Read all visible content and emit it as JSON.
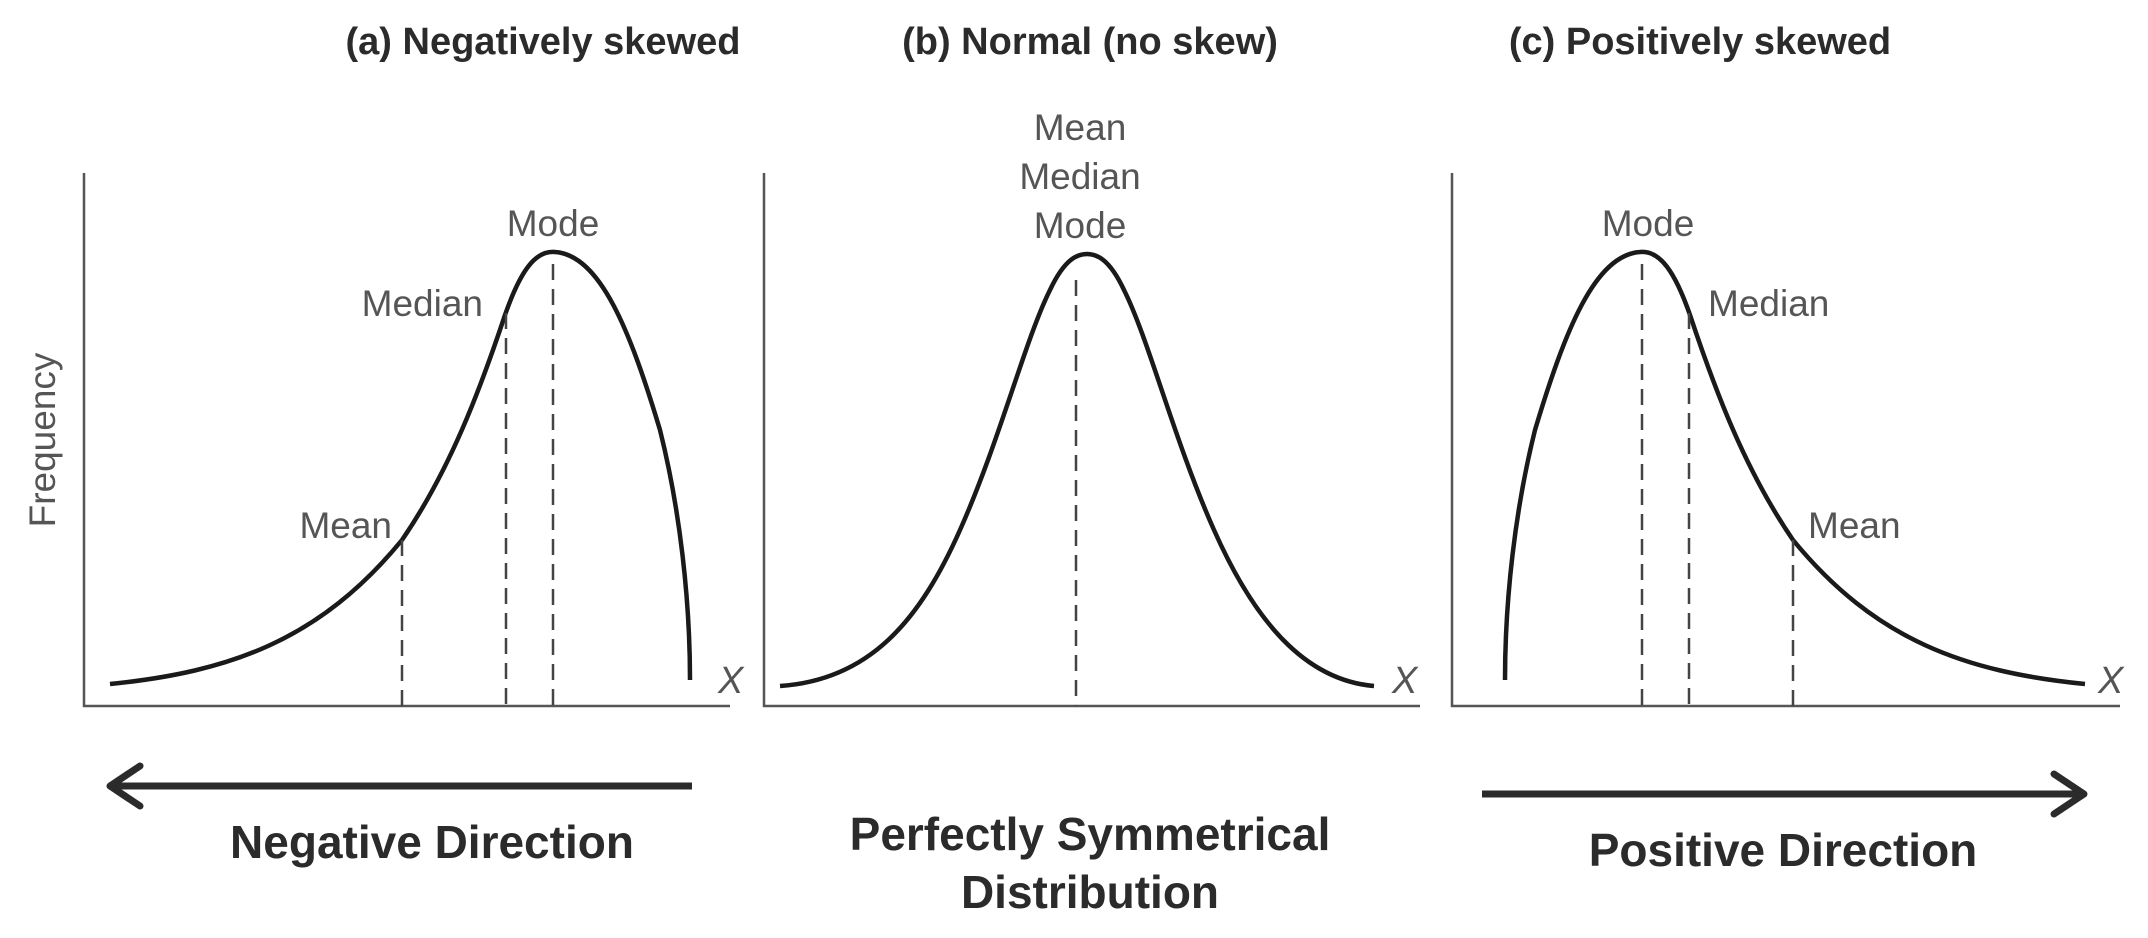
{
  "panels": [
    {
      "title": "(a) Negatively skewed",
      "labels": {
        "mode": "Mode",
        "median": "Median",
        "mean": "Mean"
      },
      "x_symbol": "X",
      "caption": [
        "Negative Direction"
      ],
      "arrow_direction": "left"
    },
    {
      "title": "(b) Normal (no skew)",
      "labels": {
        "stack": [
          "Mean",
          "Median",
          "Mode"
        ]
      },
      "x_symbol": "X",
      "caption": [
        "Perfectly Symmetrical",
        "Distribution"
      ],
      "arrow_direction": "none"
    },
    {
      "title": "(c) Positively skewed",
      "labels": {
        "mode": "Mode",
        "median": "Median",
        "mean": "Mean"
      },
      "x_symbol": "X",
      "caption": [
        "Positive Direction"
      ],
      "arrow_direction": "right"
    }
  ],
  "y_axis_label": "Frequency",
  "colors": {
    "curve": "#1a1a1a",
    "text": "#2b2b2b",
    "axis": "#555555"
  }
}
